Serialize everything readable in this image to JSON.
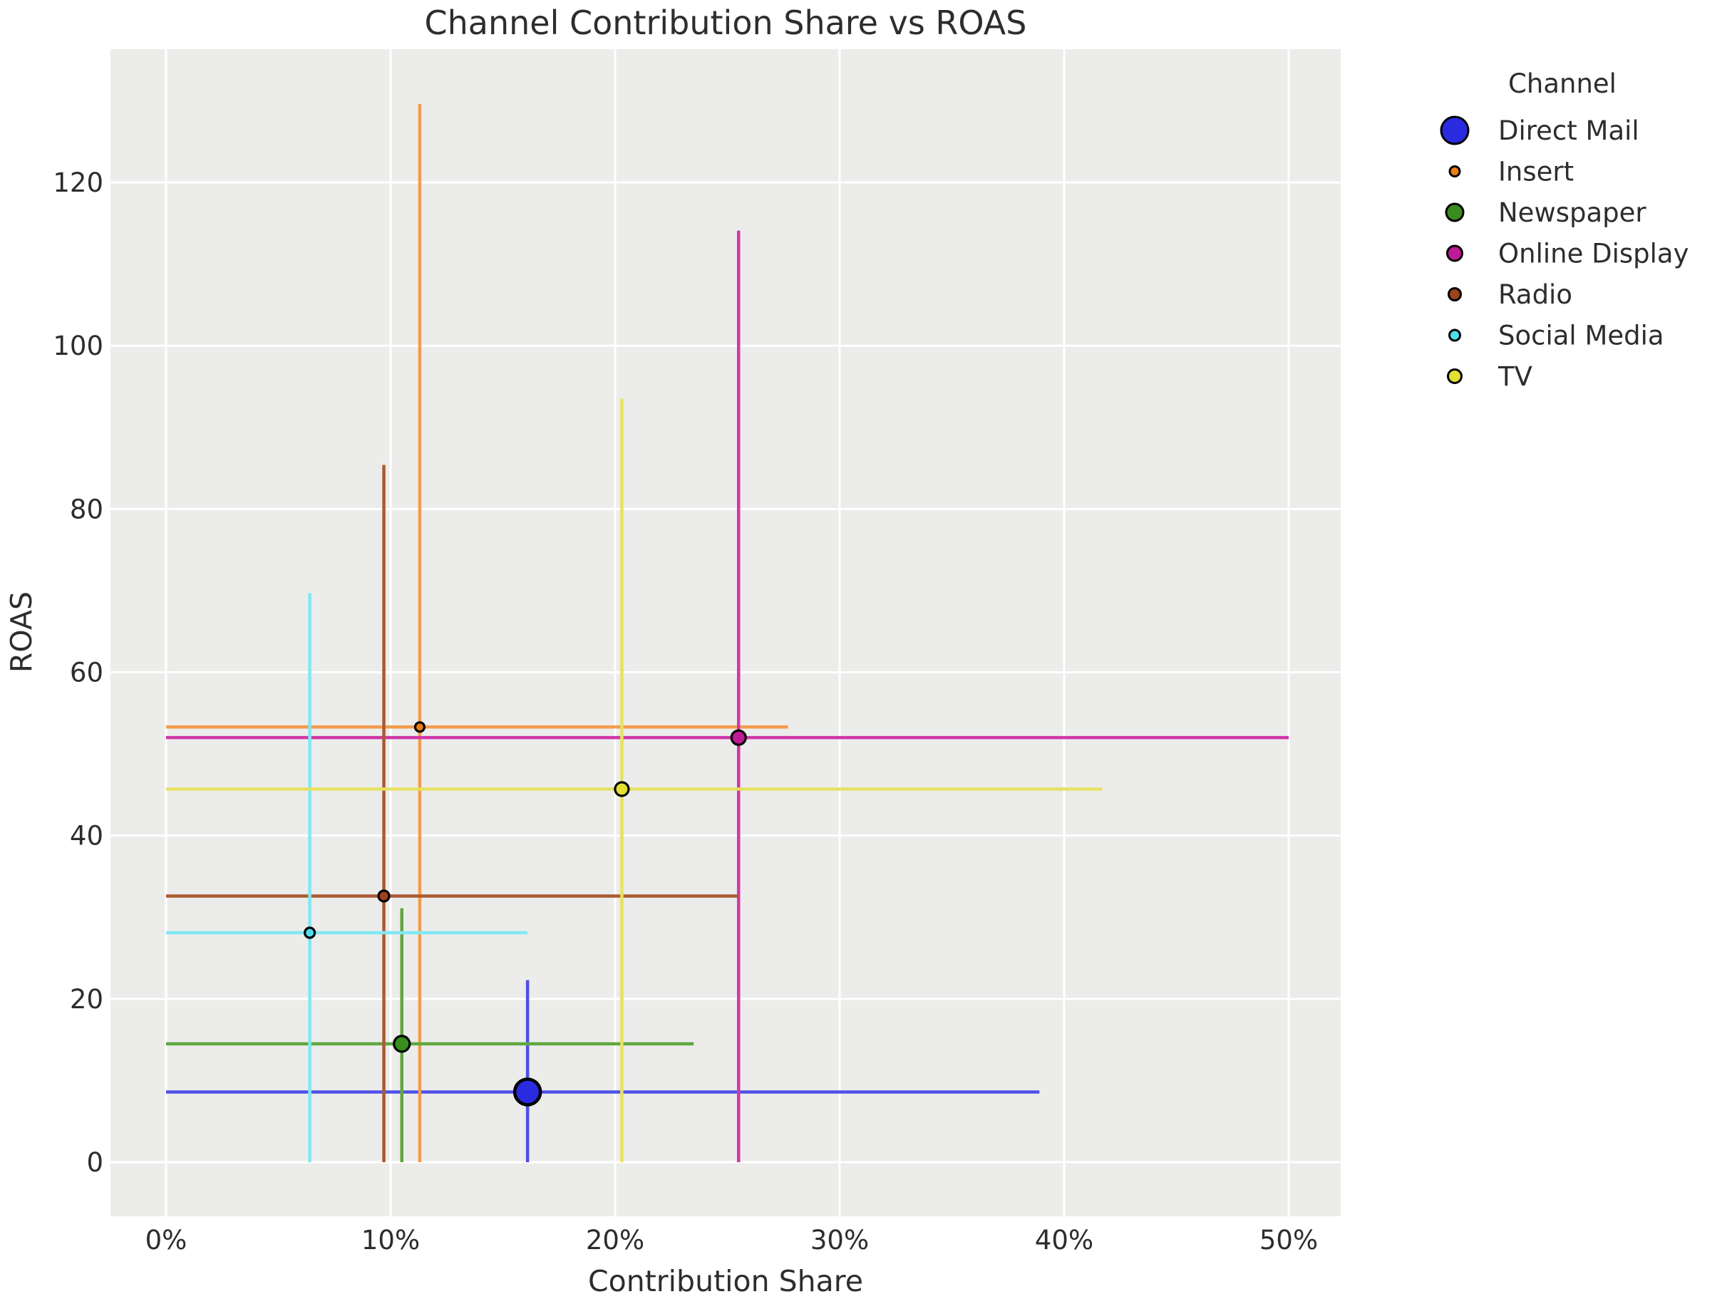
{
  "title": "Channel Contribution Share vs ROAS",
  "axes": {
    "x_label": "Contribution Share",
    "y_label": "ROAS",
    "x_tick_labels": [
      "0%",
      "10%",
      "20%",
      "30%",
      "40%",
      "50%"
    ],
    "x_tick_values": [
      0,
      10,
      20,
      30,
      40,
      50
    ],
    "y_tick_labels": [
      "0",
      "20",
      "40",
      "60",
      "80",
      "100",
      "120"
    ],
    "y_tick_values": [
      0,
      20,
      40,
      60,
      80,
      100,
      120
    ],
    "x_range_percent": [
      -2.5,
      52.4
    ],
    "y_range": [
      -6.6,
      136.4
    ],
    "grid": "on"
  },
  "legend": {
    "title": "Channel",
    "position": "right-outside-top",
    "entries": [
      "Direct Mail",
      "Insert",
      "Newspaper",
      "Online Display",
      "Radio",
      "Social Media",
      "TV"
    ]
  },
  "chart_data": {
    "type": "scatter",
    "x_unit": "percent",
    "error_bars": "asymmetric; lower x and y error bars extend to 0",
    "xlabel": "Contribution Share",
    "ylabel": "ROAS",
    "series": [
      {
        "name": "Direct Mail",
        "x": 16.1,
        "y": 8.6,
        "x_low": 0,
        "x_high": 38.9,
        "y_low": 0,
        "y_high": 22.3,
        "marker_color": "#2a2ae1",
        "line_color": "#4f4fe8",
        "marker_radius": 18,
        "legend_radius": 19
      },
      {
        "name": "Insert",
        "x": 11.3,
        "y": 53.3,
        "x_low": 0,
        "x_high": 27.7,
        "y_low": 0,
        "y_high": 129.6,
        "marker_color": "#ee7d18",
        "line_color": "#f49c4c",
        "marker_radius": 6.5,
        "legend_radius": 7
      },
      {
        "name": "Newspaper",
        "x": 10.5,
        "y": 14.5,
        "x_low": 0,
        "x_high": 23.5,
        "y_low": 0,
        "y_high": 31.1,
        "marker_color": "#398c1d",
        "line_color": "#5fa73e",
        "marker_radius": 11,
        "legend_radius": 12
      },
      {
        "name": "Online Display",
        "x": 25.5,
        "y": 52.0,
        "x_low": 0,
        "x_high": 50.0,
        "y_low": 0,
        "y_high": 114.1,
        "marker_color": "#bf1b96",
        "line_color": "#d137a8",
        "marker_radius": 10,
        "legend_radius": 10.5
      },
      {
        "name": "Radio",
        "x": 9.7,
        "y": 32.6,
        "x_low": 0,
        "x_high": 25.5,
        "y_low": 0,
        "y_high": 85.4,
        "marker_color": "#9d431b",
        "line_color": "#aa5a31",
        "marker_radius": 7.5,
        "legend_radius": 8.5
      },
      {
        "name": "Social Media",
        "x": 6.4,
        "y": 28.1,
        "x_low": 0,
        "x_high": 16.1,
        "y_low": 0,
        "y_high": 69.7,
        "marker_color": "#4edeed",
        "line_color": "#80e8f3",
        "marker_radius": 7,
        "legend_radius": 7.5
      },
      {
        "name": "TV",
        "x": 20.3,
        "y": 45.7,
        "x_low": 0,
        "x_high": 41.7,
        "y_low": 0,
        "y_high": 93.5,
        "marker_color": "#e4df33",
        "line_color": "#e6e162",
        "marker_radius": 9.5,
        "legend_radius": 9.5
      }
    ]
  },
  "style": {
    "figure_bg": "#ffffff",
    "plot_bg": "#ececeb",
    "grid_color": "#ffffff",
    "text_color": "#2d2d2d",
    "marker_edge_color": "#000000"
  }
}
